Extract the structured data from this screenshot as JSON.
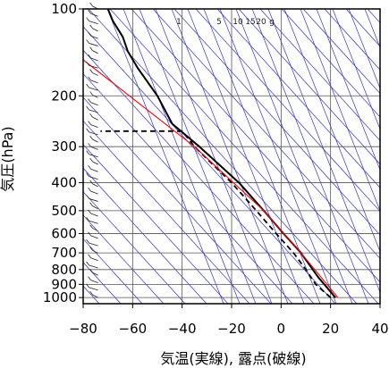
{
  "chart_data": {
    "type": "line",
    "title": "",
    "xlabel": "気温(実線), 露点(破線)",
    "ylabel": "気圧(hPa)",
    "xlim": [
      -80,
      40
    ],
    "ylim": [
      1050,
      100
    ],
    "y_scale": "log",
    "x_ticks": [
      "−80",
      "−60",
      "−40",
      "−20",
      "0",
      "20",
      "40"
    ],
    "y_ticks": [
      {
        "p": 100,
        "label": "100"
      },
      {
        "p": 200,
        "label": "200"
      },
      {
        "p": 300,
        "label": "300"
      },
      {
        "p": 400,
        "label": "400"
      },
      {
        "p": 500,
        "label": "500"
      },
      {
        "p": 600,
        "label": "600"
      },
      {
        "p": 700,
        "label": "700"
      },
      {
        "p": 800,
        "label": "800"
      },
      {
        "p": 900,
        "label": "900"
      },
      {
        "p": 1000,
        "label": "1000"
      }
    ],
    "mixing_ratio_labels": [
      "1",
      "5",
      "10",
      "15",
      "20",
      "g"
    ],
    "colors": {
      "temperature": "#000000",
      "dewpoint": "#000000",
      "parcel": "#ff0000",
      "guide": "#3333cc",
      "grid": "#555555"
    },
    "series": [
      {
        "name": "",
        "style": "solid",
        "points": [
          {
            "t": 22,
            "p": 1000
          },
          {
            "t": 15,
            "p": 850
          },
          {
            "t": 8,
            "p": 700
          },
          {
            "t": 1,
            "p": 600
          },
          {
            "t": -7,
            "p": 500
          },
          {
            "t": -17,
            "p": 400
          },
          {
            "t": -33,
            "p": 300
          },
          {
            "t": -44,
            "p": 250
          },
          {
            "t": -50,
            "p": 200
          },
          {
            "t": -58,
            "p": 160
          },
          {
            "t": -62,
            "p": 140
          },
          {
            "t": -64,
            "p": 125
          },
          {
            "t": -68,
            "p": 110
          },
          {
            "t": -70,
            "p": 100
          }
        ]
      },
      {
        "name": "",
        "style": "dashed",
        "points": [
          {
            "t": 20,
            "p": 1000
          },
          {
            "t": 14,
            "p": 900
          },
          {
            "t": 10,
            "p": 800
          },
          {
            "t": 5,
            "p": 700
          },
          {
            "t": -2,
            "p": 600
          },
          {
            "t": -10,
            "p": 500
          },
          {
            "t": -20,
            "p": 400
          },
          {
            "t": -35,
            "p": 300
          },
          {
            "t": -40,
            "p": 265
          },
          {
            "t": -73,
            "p": 265
          }
        ]
      },
      {
        "name": "",
        "style": "solid-red",
        "points": [
          {
            "t": 23,
            "p": 1000
          },
          {
            "t": 8,
            "p": 700
          },
          {
            "t": -7,
            "p": 500
          },
          {
            "t": -35,
            "p": 300
          },
          {
            "t": -80,
            "p": 150
          }
        ]
      }
    ],
    "wind_barbs": {
      "x_value": -74,
      "p_top": 100,
      "p_bottom": 1000,
      "count": 40
    }
  }
}
